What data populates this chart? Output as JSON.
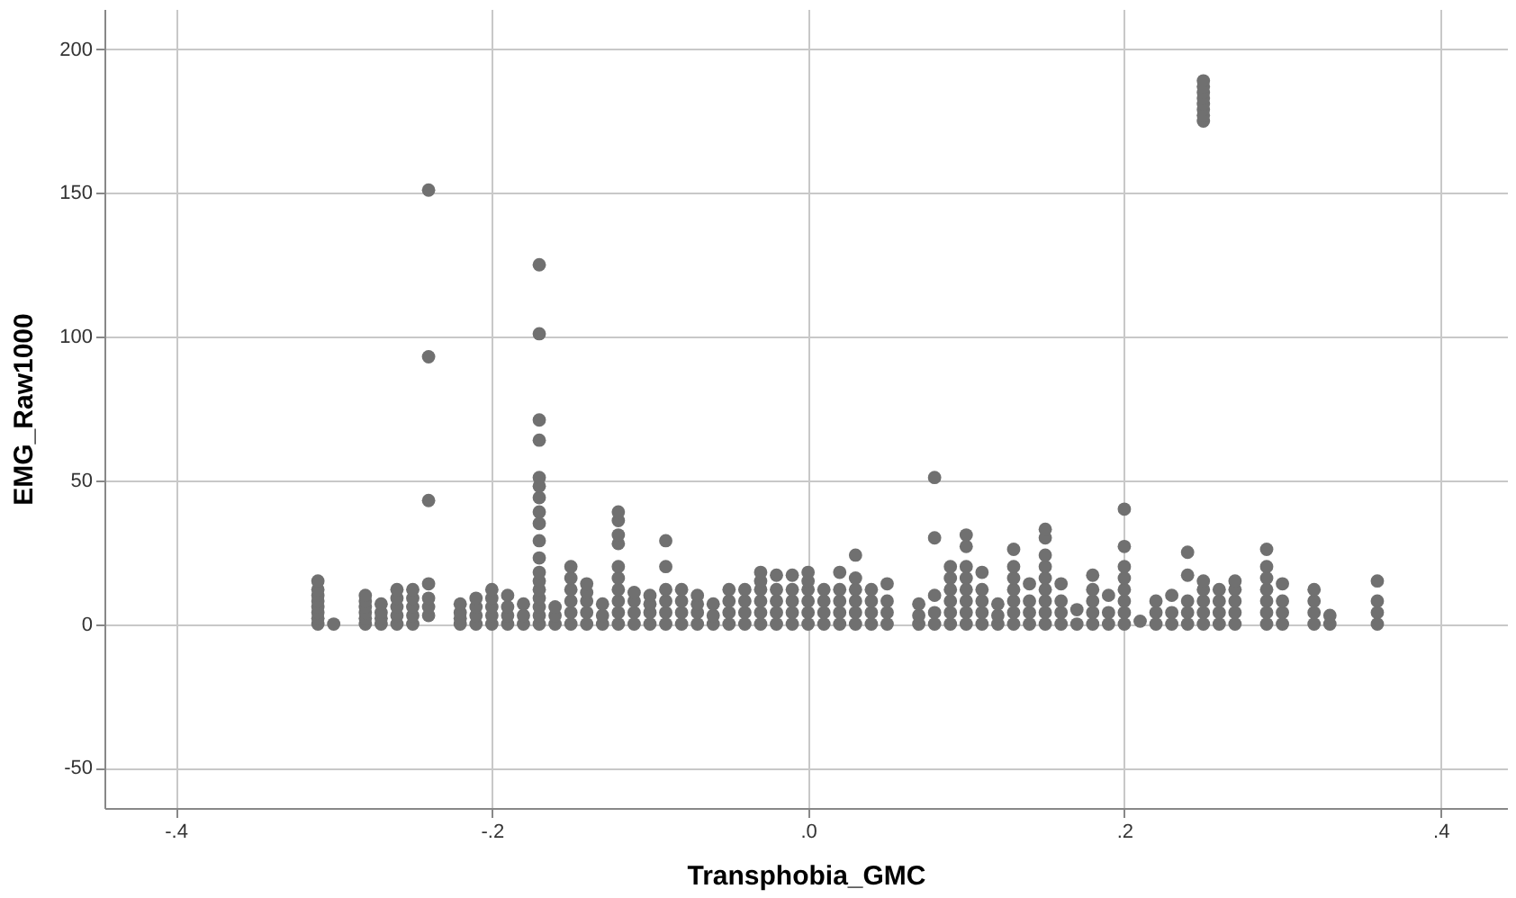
{
  "chart_data": {
    "type": "scatter",
    "xlabel": "Transphobia_GMC",
    "ylabel": "EMG_Raw1000",
    "xlim": [
      -0.445,
      0.442
    ],
    "ylim": [
      -64,
      214
    ],
    "xticks": [
      {
        "value": -0.4,
        "label": "-.4"
      },
      {
        "value": -0.2,
        "label": "-.2"
      },
      {
        "value": 0,
        "label": ".0"
      },
      {
        "value": 0.2,
        "label": ".2"
      },
      {
        "value": 0.4,
        "label": ".4"
      }
    ],
    "yticks": [
      -50,
      0,
      50,
      100,
      150,
      200
    ],
    "grid": true,
    "legend": false,
    "marker": "circle",
    "series": [
      {
        "color": "#707070",
        "x": [
          -0.31,
          -0.31,
          -0.31,
          -0.31,
          -0.31,
          -0.31,
          -0.31,
          -0.31
        ],
        "values": [
          0,
          2,
          4,
          6,
          8,
          10,
          12,
          15
        ]
      },
      {
        "color": "#707070",
        "x": [
          -0.3
        ],
        "values": [
          0
        ]
      },
      {
        "color": "#707070",
        "x": [
          -0.28,
          -0.28,
          -0.28,
          -0.28,
          -0.28,
          -0.28
        ],
        "values": [
          0,
          2,
          4,
          6,
          8,
          10
        ]
      },
      {
        "color": "#707070",
        "x": [
          -0.27,
          -0.27,
          -0.27,
          -0.27
        ],
        "values": [
          0,
          2,
          4,
          7
        ]
      },
      {
        "color": "#707070",
        "x": [
          -0.26,
          -0.26,
          -0.26,
          -0.26,
          -0.26
        ],
        "values": [
          0,
          3,
          6,
          9,
          12
        ]
      },
      {
        "color": "#707070",
        "x": [
          -0.25,
          -0.25,
          -0.25,
          -0.25,
          -0.25
        ],
        "values": [
          0,
          3,
          6,
          9,
          12
        ]
      },
      {
        "color": "#707070",
        "x": [
          -0.24,
          -0.24,
          -0.24,
          -0.24,
          -0.24,
          -0.24,
          -0.24
        ],
        "values": [
          3,
          6,
          9,
          14,
          43,
          93,
          151
        ]
      },
      {
        "color": "#707070",
        "x": [
          -0.22,
          -0.22,
          -0.22,
          -0.22
        ],
        "values": [
          0,
          2,
          4,
          7
        ]
      },
      {
        "color": "#707070",
        "x": [
          -0.21,
          -0.21,
          -0.21,
          -0.21
        ],
        "values": [
          0,
          3,
          6,
          9
        ]
      },
      {
        "color": "#707070",
        "x": [
          -0.2,
          -0.2,
          -0.2,
          -0.2,
          -0.2
        ],
        "values": [
          0,
          3,
          6,
          9,
          12
        ]
      },
      {
        "color": "#707070",
        "x": [
          -0.19,
          -0.19,
          -0.19,
          -0.19
        ],
        "values": [
          0,
          3,
          6,
          10
        ]
      },
      {
        "color": "#707070",
        "x": [
          -0.18,
          -0.18,
          -0.18
        ],
        "values": [
          0,
          3,
          7
        ]
      },
      {
        "color": "#707070",
        "x": [
          -0.17,
          -0.17,
          -0.17,
          -0.17,
          -0.17,
          -0.17,
          -0.17,
          -0.17,
          -0.17,
          -0.17,
          -0.17,
          -0.17,
          -0.17,
          -0.17,
          -0.17,
          -0.17,
          -0.17,
          -0.17
        ],
        "values": [
          0,
          3,
          6,
          9,
          12,
          15,
          18,
          23,
          29,
          35,
          39,
          44,
          48,
          51,
          64,
          71,
          101,
          125
        ]
      },
      {
        "color": "#707070",
        "x": [
          -0.16,
          -0.16,
          -0.16
        ],
        "values": [
          0,
          3,
          6
        ]
      },
      {
        "color": "#707070",
        "x": [
          -0.15,
          -0.15,
          -0.15,
          -0.15,
          -0.15,
          -0.15
        ],
        "values": [
          0,
          4,
          8,
          12,
          16,
          20
        ]
      },
      {
        "color": "#707070",
        "x": [
          -0.14,
          -0.14,
          -0.14,
          -0.14,
          -0.14
        ],
        "values": [
          0,
          4,
          8,
          11,
          14
        ]
      },
      {
        "color": "#707070",
        "x": [
          -0.13,
          -0.13,
          -0.13
        ],
        "values": [
          0,
          3,
          7
        ]
      },
      {
        "color": "#707070",
        "x": [
          -0.12,
          -0.12,
          -0.12,
          -0.12,
          -0.12,
          -0.12,
          -0.12,
          -0.12,
          -0.12,
          -0.12
        ],
        "values": [
          0,
          4,
          8,
          12,
          16,
          20,
          28,
          31,
          36,
          39
        ]
      },
      {
        "color": "#707070",
        "x": [
          -0.11,
          -0.11,
          -0.11,
          -0.11
        ],
        "values": [
          0,
          4,
          8,
          11
        ]
      },
      {
        "color": "#707070",
        "x": [
          -0.1,
          -0.1,
          -0.1,
          -0.1
        ],
        "values": [
          0,
          4,
          7,
          10
        ]
      },
      {
        "color": "#707070",
        "x": [
          -0.09,
          -0.09,
          -0.09,
          -0.09,
          -0.09,
          -0.09
        ],
        "values": [
          0,
          4,
          8,
          12,
          20,
          29
        ]
      },
      {
        "color": "#707070",
        "x": [
          -0.08,
          -0.08,
          -0.08,
          -0.08
        ],
        "values": [
          0,
          4,
          8,
          12
        ]
      },
      {
        "color": "#707070",
        "x": [
          -0.07,
          -0.07,
          -0.07,
          -0.07
        ],
        "values": [
          0,
          4,
          7,
          10
        ]
      },
      {
        "color": "#707070",
        "x": [
          -0.06,
          -0.06,
          -0.06
        ],
        "values": [
          0,
          3,
          7
        ]
      },
      {
        "color": "#707070",
        "x": [
          -0.05,
          -0.05,
          -0.05,
          -0.05
        ],
        "values": [
          0,
          4,
          8,
          12
        ]
      },
      {
        "color": "#707070",
        "x": [
          -0.04,
          -0.04,
          -0.04,
          -0.04
        ],
        "values": [
          0,
          4,
          8,
          12
        ]
      },
      {
        "color": "#707070",
        "x": [
          -0.03,
          -0.03,
          -0.03,
          -0.03,
          -0.03,
          -0.03
        ],
        "values": [
          0,
          4,
          8,
          12,
          15,
          18
        ]
      },
      {
        "color": "#707070",
        "x": [
          -0.02,
          -0.02,
          -0.02,
          -0.02,
          -0.02
        ],
        "values": [
          0,
          4,
          8,
          12,
          17
        ]
      },
      {
        "color": "#707070",
        "x": [
          -0.01,
          -0.01,
          -0.01,
          -0.01,
          -0.01
        ],
        "values": [
          0,
          4,
          8,
          12,
          17
        ]
      },
      {
        "color": "#707070",
        "x": [
          0,
          0,
          0,
          0,
          0,
          0
        ],
        "values": [
          0,
          4,
          8,
          12,
          15,
          18
        ]
      },
      {
        "color": "#707070",
        "x": [
          0.01,
          0.01,
          0.01,
          0.01
        ],
        "values": [
          0,
          4,
          8,
          12
        ]
      },
      {
        "color": "#707070",
        "x": [
          0.02,
          0.02,
          0.02,
          0.02,
          0.02
        ],
        "values": [
          0,
          4,
          8,
          12,
          18
        ]
      },
      {
        "color": "#707070",
        "x": [
          0.03,
          0.03,
          0.03,
          0.03,
          0.03,
          0.03
        ],
        "values": [
          0,
          4,
          8,
          12,
          16,
          24
        ]
      },
      {
        "color": "#707070",
        "x": [
          0.04,
          0.04,
          0.04,
          0.04
        ],
        "values": [
          0,
          4,
          8,
          12
        ]
      },
      {
        "color": "#707070",
        "x": [
          0.05,
          0.05,
          0.05,
          0.05
        ],
        "values": [
          0,
          4,
          8,
          14
        ]
      },
      {
        "color": "#707070",
        "x": [
          0.07,
          0.07,
          0.07
        ],
        "values": [
          0,
          3,
          7
        ]
      },
      {
        "color": "#707070",
        "x": [
          0.08,
          0.08,
          0.08,
          0.08,
          0.08
        ],
        "values": [
          0,
          4,
          10,
          30,
          51
        ]
      },
      {
        "color": "#707070",
        "x": [
          0.09,
          0.09,
          0.09,
          0.09,
          0.09,
          0.09
        ],
        "values": [
          0,
          4,
          8,
          12,
          16,
          20
        ]
      },
      {
        "color": "#707070",
        "x": [
          0.1,
          0.1,
          0.1,
          0.1,
          0.1,
          0.1,
          0.1,
          0.1
        ],
        "values": [
          0,
          4,
          8,
          12,
          16,
          20,
          27,
          31
        ]
      },
      {
        "color": "#707070",
        "x": [
          0.11,
          0.11,
          0.11,
          0.11,
          0.11
        ],
        "values": [
          0,
          4,
          8,
          12,
          18
        ]
      },
      {
        "color": "#707070",
        "x": [
          0.12,
          0.12,
          0.12
        ],
        "values": [
          0,
          3,
          7
        ]
      },
      {
        "color": "#707070",
        "x": [
          0.13,
          0.13,
          0.13,
          0.13,
          0.13,
          0.13,
          0.13
        ],
        "values": [
          0,
          4,
          8,
          12,
          16,
          20,
          26
        ]
      },
      {
        "color": "#707070",
        "x": [
          0.14,
          0.14,
          0.14,
          0.14
        ],
        "values": [
          0,
          4,
          8,
          14
        ]
      },
      {
        "color": "#707070",
        "x": [
          0.15,
          0.15,
          0.15,
          0.15,
          0.15,
          0.15,
          0.15,
          0.15,
          0.15
        ],
        "values": [
          0,
          4,
          8,
          12,
          16,
          20,
          24,
          30,
          33
        ]
      },
      {
        "color": "#707070",
        "x": [
          0.16,
          0.16,
          0.16,
          0.16
        ],
        "values": [
          0,
          4,
          8,
          14
        ]
      },
      {
        "color": "#707070",
        "x": [
          0.17,
          0.17
        ],
        "values": [
          0,
          5
        ]
      },
      {
        "color": "#707070",
        "x": [
          0.18,
          0.18,
          0.18,
          0.18,
          0.18
        ],
        "values": [
          0,
          4,
          8,
          12,
          17
        ]
      },
      {
        "color": "#707070",
        "x": [
          0.19,
          0.19,
          0.19
        ],
        "values": [
          0,
          4,
          10
        ]
      },
      {
        "color": "#707070",
        "x": [
          0.2,
          0.2,
          0.2,
          0.2,
          0.2,
          0.2,
          0.2,
          0.2
        ],
        "values": [
          0,
          4,
          8,
          12,
          16,
          20,
          27,
          40
        ]
      },
      {
        "color": "#707070",
        "x": [
          0.21
        ],
        "values": [
          1
        ]
      },
      {
        "color": "#707070",
        "x": [
          0.22,
          0.22,
          0.22
        ],
        "values": [
          0,
          4,
          8
        ]
      },
      {
        "color": "#707070",
        "x": [
          0.23,
          0.23,
          0.23
        ],
        "values": [
          0,
          4,
          10
        ]
      },
      {
        "color": "#707070",
        "x": [
          0.24,
          0.24,
          0.24,
          0.24,
          0.24
        ],
        "values": [
          0,
          4,
          8,
          17,
          25
        ]
      },
      {
        "color": "#707070",
        "x": [
          0.25,
          0.25,
          0.25,
          0.25,
          0.25,
          0.25,
          0.25,
          0.25,
          0.25,
          0.25,
          0.25,
          0.25,
          0.25
        ],
        "values": [
          0,
          4,
          8,
          12,
          15,
          175,
          177,
          179,
          181,
          183,
          185,
          187,
          189
        ]
      },
      {
        "color": "#707070",
        "x": [
          0.26,
          0.26,
          0.26,
          0.26
        ],
        "values": [
          0,
          4,
          8,
          12
        ]
      },
      {
        "color": "#707070",
        "x": [
          0.27,
          0.27,
          0.27,
          0.27,
          0.27
        ],
        "values": [
          0,
          4,
          8,
          12,
          15
        ]
      },
      {
        "color": "#707070",
        "x": [
          0.29,
          0.29,
          0.29,
          0.29,
          0.29,
          0.29,
          0.29
        ],
        "values": [
          0,
          4,
          8,
          12,
          16,
          20,
          26
        ]
      },
      {
        "color": "#707070",
        "x": [
          0.3,
          0.3,
          0.3,
          0.3
        ],
        "values": [
          0,
          4,
          8,
          14
        ]
      },
      {
        "color": "#707070",
        "x": [
          0.32,
          0.32,
          0.32,
          0.32
        ],
        "values": [
          0,
          4,
          8,
          12
        ]
      },
      {
        "color": "#707070",
        "x": [
          0.33,
          0.33
        ],
        "values": [
          0,
          3
        ]
      },
      {
        "color": "#707070",
        "x": [
          0.36,
          0.36,
          0.36,
          0.36
        ],
        "values": [
          0,
          4,
          8,
          15
        ]
      }
    ]
  }
}
